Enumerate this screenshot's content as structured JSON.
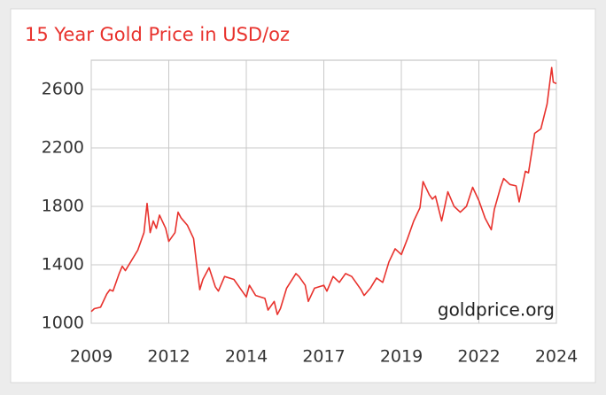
{
  "chart_data": {
    "type": "line",
    "title": "15 Year Gold Price in USD/oz",
    "watermark": "goldprice.org",
    "x": [
      2009.9,
      2010.0,
      2010.2,
      2010.4,
      2010.5,
      2010.6,
      2010.8,
      2010.9,
      2011.0,
      2011.2,
      2011.4,
      2011.6,
      2011.7,
      2011.8,
      2011.9,
      2012.0,
      2012.1,
      2012.3,
      2012.4,
      2012.6,
      2012.7,
      2012.8,
      2013.0,
      2013.2,
      2013.3,
      2013.4,
      2013.5,
      2013.7,
      2013.9,
      2014.0,
      2014.2,
      2014.5,
      2014.7,
      2014.9,
      2015.0,
      2015.2,
      2015.5,
      2015.6,
      2015.8,
      2015.9,
      2016.0,
      2016.2,
      2016.5,
      2016.6,
      2016.8,
      2016.9,
      2017.1,
      2017.4,
      2017.5,
      2017.7,
      2017.9,
      2018.1,
      2018.3,
      2018.6,
      2018.7,
      2018.9,
      2019.1,
      2019.3,
      2019.5,
      2019.7,
      2019.9,
      2020.1,
      2020.3,
      2020.5,
      2020.6,
      2020.8,
      2020.9,
      2021.0,
      2021.2,
      2021.4,
      2021.6,
      2021.8,
      2022.0,
      2022.2,
      2022.4,
      2022.6,
      2022.8,
      2022.9,
      2023.1,
      2023.2,
      2023.4,
      2023.6,
      2023.7,
      2023.9,
      2024.0,
      2024.2,
      2024.4,
      2024.6,
      2024.75,
      2024.8,
      2024.9
    ],
    "series": [
      {
        "name": "Gold",
        "color": "#e8322d",
        "values": [
          1080,
          1100,
          1110,
          1200,
          1230,
          1220,
          1340,
          1390,
          1360,
          1430,
          1500,
          1620,
          1820,
          1620,
          1700,
          1650,
          1740,
          1650,
          1560,
          1620,
          1760,
          1720,
          1670,
          1580,
          1400,
          1230,
          1300,
          1380,
          1250,
          1220,
          1320,
          1300,
          1240,
          1180,
          1260,
          1190,
          1170,
          1090,
          1150,
          1060,
          1100,
          1240,
          1340,
          1320,
          1260,
          1150,
          1240,
          1260,
          1220,
          1320,
          1280,
          1340,
          1320,
          1230,
          1190,
          1240,
          1310,
          1280,
          1420,
          1510,
          1470,
          1580,
          1700,
          1790,
          1970,
          1880,
          1850,
          1870,
          1700,
          1900,
          1800,
          1760,
          1800,
          1930,
          1840,
          1720,
          1640,
          1780,
          1930,
          1990,
          1950,
          1940,
          1830,
          2040,
          2030,
          2300,
          2330,
          2500,
          2750,
          2650,
          2640
        ]
      }
    ],
    "xlim": [
      2009.9,
      2024.9
    ],
    "xticks": [
      {
        "value": 2009.9,
        "label": "2009"
      },
      {
        "value": 2012.4,
        "label": "2012"
      },
      {
        "value": 2014.9,
        "label": "2014"
      },
      {
        "value": 2017.4,
        "label": "2017"
      },
      {
        "value": 2019.9,
        "label": "2019"
      },
      {
        "value": 2022.4,
        "label": "2022"
      },
      {
        "value": 2024.9,
        "label": "2024"
      }
    ],
    "ylim": [
      1000,
      2800
    ],
    "yticks": [
      1000,
      1400,
      1800,
      2200,
      2600
    ],
    "grid": true
  }
}
